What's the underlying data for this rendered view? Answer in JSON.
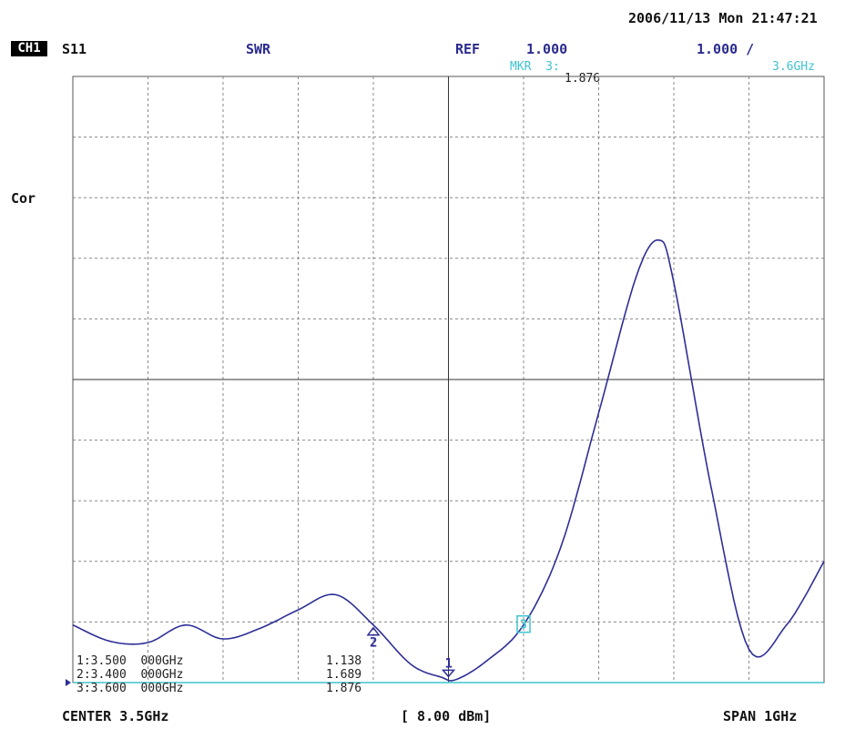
{
  "header": {
    "datetime": "2006/11/13 Mon 21:47:21",
    "channel": "CH1",
    "parameter": "S11",
    "format": "SWR",
    "ref_label": "REF",
    "ref_value": "1.000",
    "scale": "1.000 /",
    "marker_label": "MKR  3:",
    "marker_freq": "3.6GHz",
    "marker_value": "1.876",
    "correction": "Cor"
  },
  "footer": {
    "center": "CENTER 3.5GHz",
    "power": "[ 8.00 dBm]",
    "span": "SPAN 1GHz"
  },
  "marker_table": [
    {
      "label": "1:3.500  000GHz",
      "value": "1.138"
    },
    {
      "label": "2:3.400  000GHz",
      "value": "1.689"
    },
    {
      "label": "3:3.600  000GHz",
      "value": "1.876"
    }
  ],
  "markers": [
    {
      "id": "1",
      "freq": 3.5,
      "value": 1.138
    },
    {
      "id": "2",
      "freq": 3.4,
      "value": 1.689
    },
    {
      "id": "3",
      "freq": 3.6,
      "value": 1.876
    }
  ],
  "colors": {
    "trace": "#2e2e96",
    "marker_active": "#3fc4cf",
    "grid": "#808080",
    "ref_line": "#3fc4cf"
  },
  "chart_data": {
    "type": "line",
    "title": "",
    "xlabel": "",
    "ylabel": "",
    "xlim": [
      3.0,
      4.0
    ],
    "ylim": [
      1.0,
      11.0
    ],
    "grid": true,
    "series": [
      {
        "name": "",
        "x": [
          3.0,
          3.05,
          3.1,
          3.15,
          3.2,
          3.25,
          3.3,
          3.35,
          3.4,
          3.45,
          3.49,
          3.51,
          3.55,
          3.6,
          3.65,
          3.7,
          3.75,
          3.78,
          3.8,
          3.85,
          3.9,
          3.95,
          4.0
        ],
        "y": [
          1.95,
          1.68,
          1.66,
          1.95,
          1.72,
          1.9,
          2.2,
          2.45,
          1.95,
          1.3,
          1.09,
          1.05,
          1.35,
          1.95,
          3.25,
          5.45,
          7.7,
          8.3,
          7.6,
          4.2,
          1.55,
          1.95,
          3.0
        ]
      }
    ]
  }
}
